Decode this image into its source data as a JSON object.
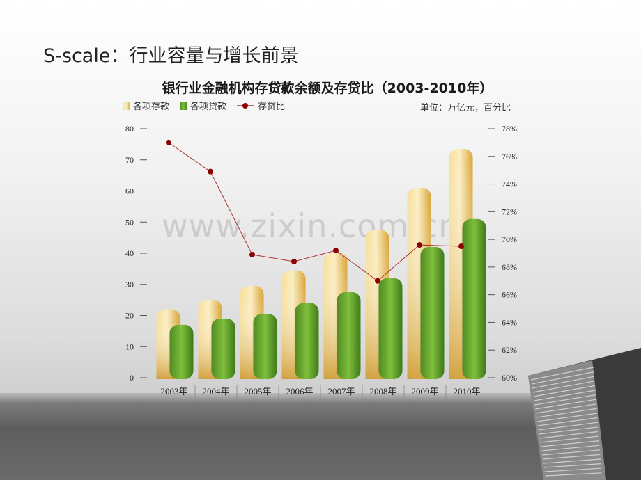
{
  "slide": {
    "title": "S-scale：行业容量与增长前景"
  },
  "watermark": "www.zixin.com.cn",
  "chart_data": {
    "type": "bar",
    "title": "银行业金融机构存贷款余额及存贷比（2003-2010年）",
    "unit_note": "单位：万亿元，百分比",
    "categories": [
      "2003年",
      "2004年",
      "2005年",
      "2006年",
      "2007年",
      "2008年",
      "2009年",
      "2010年"
    ],
    "series": [
      {
        "name": "各项存款",
        "type": "bar",
        "axis": "left",
        "color": "#e8b94a",
        "values": [
          22,
          25,
          29.5,
          34.5,
          40,
          47.5,
          61,
          73.5
        ]
      },
      {
        "name": "各项贷款",
        "type": "bar",
        "axis": "left",
        "color": "#5c9a2c",
        "values": [
          17,
          19,
          20.5,
          24,
          27.5,
          32,
          42,
          51
        ]
      },
      {
        "name": "存贷比",
        "type": "line",
        "axis": "right",
        "color": "#8b0000",
        "values": [
          77,
          74.9,
          68.9,
          68.4,
          69.2,
          67,
          69.6,
          69.5
        ]
      }
    ],
    "y_left": {
      "min": 0,
      "max": 80,
      "ticks": [
        "0",
        "10",
        "20",
        "30",
        "40",
        "50",
        "60",
        "70",
        "80"
      ]
    },
    "y_right": {
      "min": 60,
      "max": 78,
      "ticks": [
        "60%",
        "62%",
        "64%",
        "66%",
        "68%",
        "70%",
        "72%",
        "74%",
        "76%",
        "78%"
      ]
    },
    "legend": "top-left"
  }
}
